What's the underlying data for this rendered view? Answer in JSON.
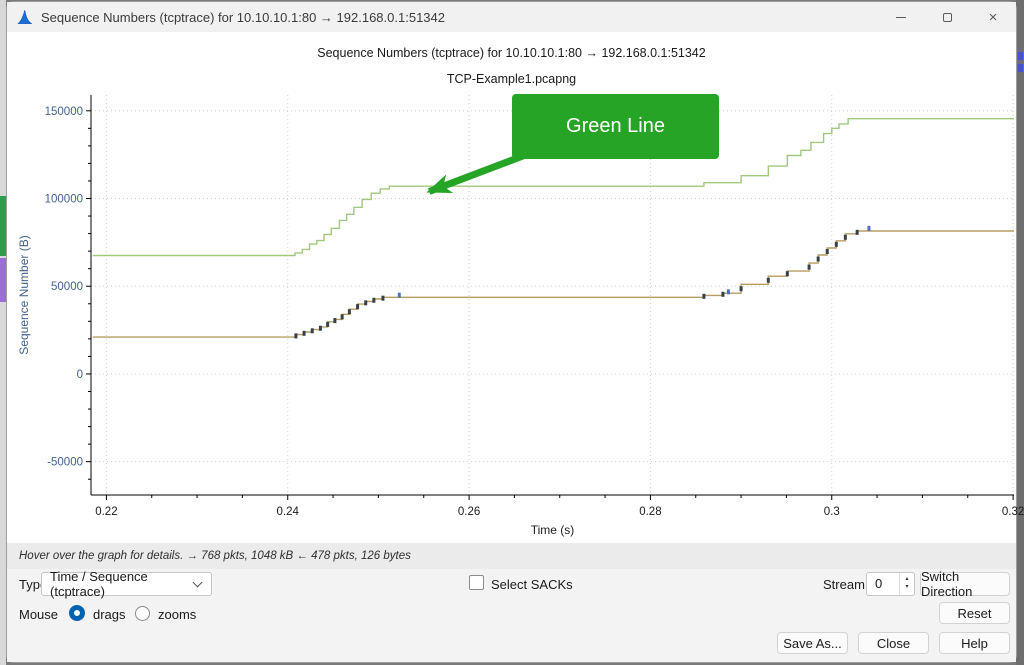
{
  "window": {
    "title": "Sequence Numbers (tcptrace) for 10.10.10.1:80 → 192.168.0.1:51342"
  },
  "chart_data": {
    "type": "line",
    "title": "Sequence Numbers (tcptrace) for 10.10.10.1:80 → 192.168.0.1:51342",
    "subtitle": "TCP-Example1.pcapng",
    "xlabel": "Time (s)",
    "ylabel": "Sequence Number (B)",
    "xlim": [
      0.2183,
      0.3201
    ],
    "ylim": [
      -69000,
      159000
    ],
    "x_ticks": [
      0.22,
      0.24,
      0.26,
      0.28,
      0.3,
      0.32
    ],
    "x_tick_labels": [
      "0.22",
      "0.24",
      "0.26",
      "0.28",
      "0.3",
      "0.32"
    ],
    "x_minor_step": 0.005,
    "y_ticks": [
      -50000,
      0,
      50000,
      100000,
      150000
    ],
    "y_tick_labels": [
      "-50000",
      "0",
      "50000",
      "100000",
      "150000"
    ],
    "y_minor_step": 10000,
    "grid": "dotted",
    "grid_color": "#cdcdcd",
    "axis_color": "#000000",
    "x_label_color": "#1a1a1a",
    "y_label_color": "#41618e",
    "series": [
      {
        "name": "receive-window-line",
        "color": "#a2c87e",
        "points": [
          [
            0.2185,
            67500
          ],
          [
            0.2408,
            69000
          ],
          [
            0.2416,
            71000
          ],
          [
            0.2424,
            74000
          ],
          [
            0.2432,
            76000
          ],
          [
            0.244,
            79500
          ],
          [
            0.2448,
            83000
          ],
          [
            0.2457,
            87500
          ],
          [
            0.2465,
            91000
          ],
          [
            0.2473,
            95000
          ],
          [
            0.2482,
            99500
          ],
          [
            0.2492,
            103000
          ],
          [
            0.2502,
            105500
          ],
          [
            0.2512,
            107000
          ],
          [
            0.2859,
            109000
          ],
          [
            0.29,
            113000
          ],
          [
            0.293,
            118500
          ],
          [
            0.2951,
            124500
          ],
          [
            0.2966,
            127500
          ],
          [
            0.2977,
            132000
          ],
          [
            0.2991,
            137000
          ],
          [
            0.3,
            140000
          ],
          [
            0.3008,
            142500
          ],
          [
            0.3018,
            145500
          ]
        ]
      },
      {
        "name": "ack-line",
        "color": "#b79d62",
        "points": [
          [
            0.2185,
            21000
          ],
          [
            0.2409,
            22400
          ],
          [
            0.2418,
            23900
          ],
          [
            0.2427,
            25300
          ],
          [
            0.2436,
            26800
          ],
          [
            0.2444,
            29700
          ],
          [
            0.2452,
            31100
          ],
          [
            0.246,
            34000
          ],
          [
            0.2468,
            36900
          ],
          [
            0.2477,
            39800
          ],
          [
            0.2486,
            41300
          ],
          [
            0.2495,
            42700
          ],
          [
            0.2505,
            43700
          ],
          [
            0.2859,
            44800
          ],
          [
            0.288,
            46000
          ],
          [
            0.29,
            51100
          ],
          [
            0.293,
            55700
          ],
          [
            0.2951,
            58600
          ],
          [
            0.2975,
            63200
          ],
          [
            0.2985,
            67800
          ],
          [
            0.2995,
            71800
          ],
          [
            0.3005,
            75900
          ],
          [
            0.3015,
            79900
          ],
          [
            0.3028,
            81500
          ]
        ]
      }
    ],
    "segment_tick_color": "#37414a",
    "sack_marks": {
      "color": "#5570c0",
      "points": [
        [
          0.2523,
          44900
        ],
        [
          0.2886,
          46800
        ],
        [
          0.3041,
          83000
        ]
      ]
    },
    "annotation": {
      "label": "Green Line",
      "box_color": "#25a425",
      "text_color": "#ffffff",
      "arrow_tip": [
        0.2556,
        104000
      ]
    }
  },
  "hint": "Hover over the graph for details. → 768 pkts, 1048 kB ← 478 pkts, 126 bytes",
  "controls": {
    "type_label": "Type",
    "type_value": "Time / Sequence (tcptrace)",
    "select_sacks_label": "Select SACKs",
    "stream_label": "Stream",
    "stream_value": "0",
    "switch_direction_label": "Switch Direction",
    "mouse_label": "Mouse",
    "drags_label": "drags",
    "zooms_label": "zooms",
    "reset_label": "Reset",
    "save_as_label": "Save As...",
    "close_label": "Close",
    "help_label": "Help"
  }
}
